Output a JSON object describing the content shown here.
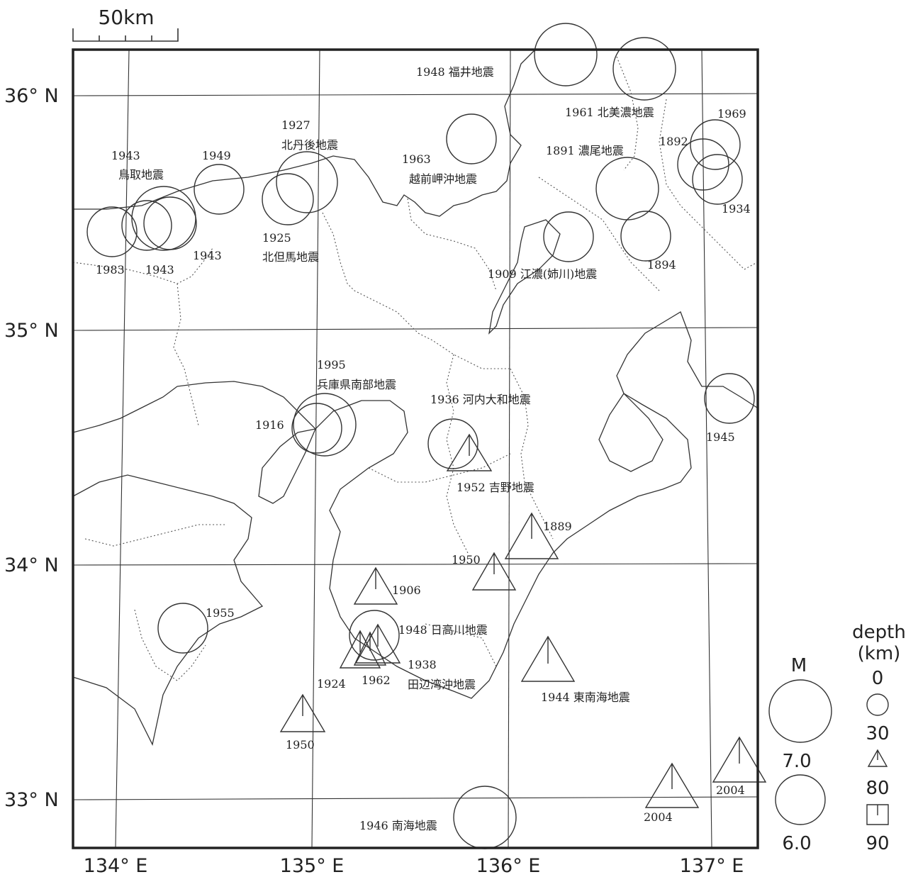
{
  "scale_bar": {
    "label": "50km"
  },
  "axes": {
    "lat_labels": [
      "36° N",
      "35° N",
      "34° N",
      "33° N"
    ],
    "lon_labels": [
      "134° E",
      "135° E",
      "136° E",
      "137° E"
    ]
  },
  "legend": {
    "magnitude_title": "M",
    "magnitude_values": [
      "7.0",
      "6.0"
    ],
    "depth_title": "depth",
    "depth_unit": "(km)",
    "depth_values": [
      "0",
      "30",
      "80",
      "90"
    ]
  },
  "labels": [
    "1948 福井地震",
    "1961 北美濃地震",
    "1969",
    "1892",
    "1934",
    "1891 濃尾地震",
    "1963",
    "越前岬沖地震",
    "1927",
    "北丹後地震",
    "1943",
    "鳥取地震",
    "1949",
    "1925",
    "北但馬地震",
    "1983",
    "1943",
    "1943",
    "1909 江濃(姉川)地震",
    "1894",
    "1995",
    "兵庫県南部地震",
    "1916",
    "1936 河内大和地震",
    "1945",
    "1952 吉野地震",
    "1889",
    "1950",
    "1906",
    "1955",
    "1948 日高川地震",
    "1938",
    "田辺湾沖地震",
    "1924",
    "1962",
    "1944 東南海地震",
    "1950",
    "2004",
    "2004",
    "1946 南海地震"
  ]
}
